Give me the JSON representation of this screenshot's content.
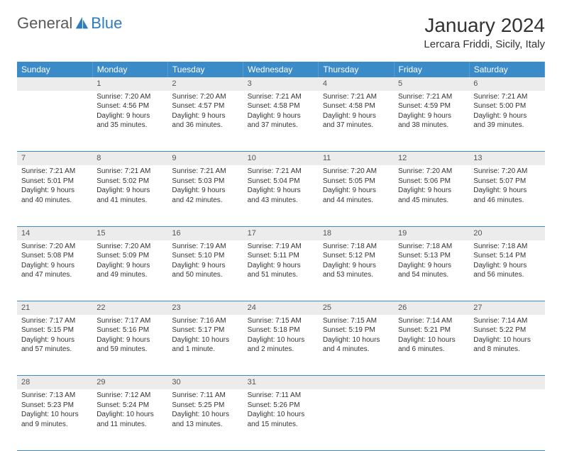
{
  "brand": {
    "part1": "General",
    "part2": "Blue"
  },
  "title": "January 2024",
  "location": "Lercara Friddi, Sicily, Italy",
  "colors": {
    "header_bg": "#3b8bc9",
    "header_text": "#ffffff",
    "daynum_bg": "#ececec",
    "daynum_text": "#555555",
    "row_divider": "#3b8bc9",
    "body_text": "#333333",
    "brand_gray": "#5a5a5a",
    "brand_blue": "#2d7bc0",
    "background": "#ffffff"
  },
  "typography": {
    "title_fontsize": 28,
    "location_fontsize": 15,
    "weekday_fontsize": 12,
    "daynum_fontsize": 11,
    "cell_fontsize": 10
  },
  "weekdays": [
    "Sunday",
    "Monday",
    "Tuesday",
    "Wednesday",
    "Thursday",
    "Friday",
    "Saturday"
  ],
  "weeks": [
    {
      "nums": [
        "",
        "1",
        "2",
        "3",
        "4",
        "5",
        "6"
      ],
      "cells": [
        {
          "sunrise": "",
          "sunset": "",
          "daylight1": "",
          "daylight2": ""
        },
        {
          "sunrise": "Sunrise: 7:20 AM",
          "sunset": "Sunset: 4:56 PM",
          "daylight1": "Daylight: 9 hours",
          "daylight2": "and 35 minutes."
        },
        {
          "sunrise": "Sunrise: 7:20 AM",
          "sunset": "Sunset: 4:57 PM",
          "daylight1": "Daylight: 9 hours",
          "daylight2": "and 36 minutes."
        },
        {
          "sunrise": "Sunrise: 7:21 AM",
          "sunset": "Sunset: 4:58 PM",
          "daylight1": "Daylight: 9 hours",
          "daylight2": "and 37 minutes."
        },
        {
          "sunrise": "Sunrise: 7:21 AM",
          "sunset": "Sunset: 4:58 PM",
          "daylight1": "Daylight: 9 hours",
          "daylight2": "and 37 minutes."
        },
        {
          "sunrise": "Sunrise: 7:21 AM",
          "sunset": "Sunset: 4:59 PM",
          "daylight1": "Daylight: 9 hours",
          "daylight2": "and 38 minutes."
        },
        {
          "sunrise": "Sunrise: 7:21 AM",
          "sunset": "Sunset: 5:00 PM",
          "daylight1": "Daylight: 9 hours",
          "daylight2": "and 39 minutes."
        }
      ]
    },
    {
      "nums": [
        "7",
        "8",
        "9",
        "10",
        "11",
        "12",
        "13"
      ],
      "cells": [
        {
          "sunrise": "Sunrise: 7:21 AM",
          "sunset": "Sunset: 5:01 PM",
          "daylight1": "Daylight: 9 hours",
          "daylight2": "and 40 minutes."
        },
        {
          "sunrise": "Sunrise: 7:21 AM",
          "sunset": "Sunset: 5:02 PM",
          "daylight1": "Daylight: 9 hours",
          "daylight2": "and 41 minutes."
        },
        {
          "sunrise": "Sunrise: 7:21 AM",
          "sunset": "Sunset: 5:03 PM",
          "daylight1": "Daylight: 9 hours",
          "daylight2": "and 42 minutes."
        },
        {
          "sunrise": "Sunrise: 7:21 AM",
          "sunset": "Sunset: 5:04 PM",
          "daylight1": "Daylight: 9 hours",
          "daylight2": "and 43 minutes."
        },
        {
          "sunrise": "Sunrise: 7:20 AM",
          "sunset": "Sunset: 5:05 PM",
          "daylight1": "Daylight: 9 hours",
          "daylight2": "and 44 minutes."
        },
        {
          "sunrise": "Sunrise: 7:20 AM",
          "sunset": "Sunset: 5:06 PM",
          "daylight1": "Daylight: 9 hours",
          "daylight2": "and 45 minutes."
        },
        {
          "sunrise": "Sunrise: 7:20 AM",
          "sunset": "Sunset: 5:07 PM",
          "daylight1": "Daylight: 9 hours",
          "daylight2": "and 46 minutes."
        }
      ]
    },
    {
      "nums": [
        "14",
        "15",
        "16",
        "17",
        "18",
        "19",
        "20"
      ],
      "cells": [
        {
          "sunrise": "Sunrise: 7:20 AM",
          "sunset": "Sunset: 5:08 PM",
          "daylight1": "Daylight: 9 hours",
          "daylight2": "and 47 minutes."
        },
        {
          "sunrise": "Sunrise: 7:20 AM",
          "sunset": "Sunset: 5:09 PM",
          "daylight1": "Daylight: 9 hours",
          "daylight2": "and 49 minutes."
        },
        {
          "sunrise": "Sunrise: 7:19 AM",
          "sunset": "Sunset: 5:10 PM",
          "daylight1": "Daylight: 9 hours",
          "daylight2": "and 50 minutes."
        },
        {
          "sunrise": "Sunrise: 7:19 AM",
          "sunset": "Sunset: 5:11 PM",
          "daylight1": "Daylight: 9 hours",
          "daylight2": "and 51 minutes."
        },
        {
          "sunrise": "Sunrise: 7:18 AM",
          "sunset": "Sunset: 5:12 PM",
          "daylight1": "Daylight: 9 hours",
          "daylight2": "and 53 minutes."
        },
        {
          "sunrise": "Sunrise: 7:18 AM",
          "sunset": "Sunset: 5:13 PM",
          "daylight1": "Daylight: 9 hours",
          "daylight2": "and 54 minutes."
        },
        {
          "sunrise": "Sunrise: 7:18 AM",
          "sunset": "Sunset: 5:14 PM",
          "daylight1": "Daylight: 9 hours",
          "daylight2": "and 56 minutes."
        }
      ]
    },
    {
      "nums": [
        "21",
        "22",
        "23",
        "24",
        "25",
        "26",
        "27"
      ],
      "cells": [
        {
          "sunrise": "Sunrise: 7:17 AM",
          "sunset": "Sunset: 5:15 PM",
          "daylight1": "Daylight: 9 hours",
          "daylight2": "and 57 minutes."
        },
        {
          "sunrise": "Sunrise: 7:17 AM",
          "sunset": "Sunset: 5:16 PM",
          "daylight1": "Daylight: 9 hours",
          "daylight2": "and 59 minutes."
        },
        {
          "sunrise": "Sunrise: 7:16 AM",
          "sunset": "Sunset: 5:17 PM",
          "daylight1": "Daylight: 10 hours",
          "daylight2": "and 1 minute."
        },
        {
          "sunrise": "Sunrise: 7:15 AM",
          "sunset": "Sunset: 5:18 PM",
          "daylight1": "Daylight: 10 hours",
          "daylight2": "and 2 minutes."
        },
        {
          "sunrise": "Sunrise: 7:15 AM",
          "sunset": "Sunset: 5:19 PM",
          "daylight1": "Daylight: 10 hours",
          "daylight2": "and 4 minutes."
        },
        {
          "sunrise": "Sunrise: 7:14 AM",
          "sunset": "Sunset: 5:21 PM",
          "daylight1": "Daylight: 10 hours",
          "daylight2": "and 6 minutes."
        },
        {
          "sunrise": "Sunrise: 7:14 AM",
          "sunset": "Sunset: 5:22 PM",
          "daylight1": "Daylight: 10 hours",
          "daylight2": "and 8 minutes."
        }
      ]
    },
    {
      "nums": [
        "28",
        "29",
        "30",
        "31",
        "",
        "",
        ""
      ],
      "cells": [
        {
          "sunrise": "Sunrise: 7:13 AM",
          "sunset": "Sunset: 5:23 PM",
          "daylight1": "Daylight: 10 hours",
          "daylight2": "and 9 minutes."
        },
        {
          "sunrise": "Sunrise: 7:12 AM",
          "sunset": "Sunset: 5:24 PM",
          "daylight1": "Daylight: 10 hours",
          "daylight2": "and 11 minutes."
        },
        {
          "sunrise": "Sunrise: 7:11 AM",
          "sunset": "Sunset: 5:25 PM",
          "daylight1": "Daylight: 10 hours",
          "daylight2": "and 13 minutes."
        },
        {
          "sunrise": "Sunrise: 7:11 AM",
          "sunset": "Sunset: 5:26 PM",
          "daylight1": "Daylight: 10 hours",
          "daylight2": "and 15 minutes."
        },
        {
          "sunrise": "",
          "sunset": "",
          "daylight1": "",
          "daylight2": ""
        },
        {
          "sunrise": "",
          "sunset": "",
          "daylight1": "",
          "daylight2": ""
        },
        {
          "sunrise": "",
          "sunset": "",
          "daylight1": "",
          "daylight2": ""
        }
      ]
    }
  ]
}
